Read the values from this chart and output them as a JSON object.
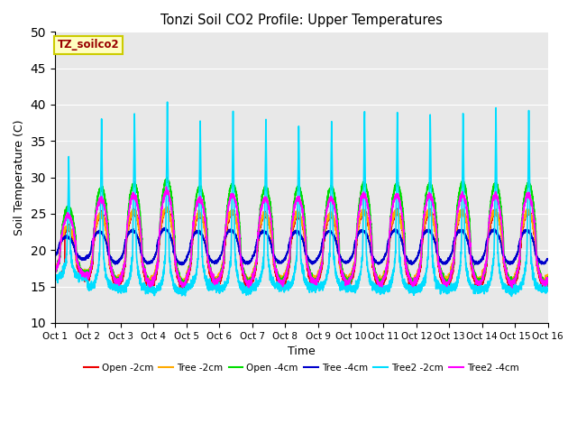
{
  "title": "Tonzi Soil CO2 Profile: Upper Temperatures",
  "xlabel": "Time",
  "ylabel": "Soil Temperature (C)",
  "ylim": [
    10,
    50
  ],
  "xlim": [
    0,
    15
  ],
  "yticks": [
    10,
    15,
    20,
    25,
    30,
    35,
    40,
    45,
    50
  ],
  "xtick_labels": [
    "Oct 1",
    "Oct 2",
    "Oct 3",
    "Oct 4",
    "Oct 5",
    "Oct 6",
    "Oct 7",
    "Oct 8",
    "Oct 9",
    "Oct 10",
    "Oct 11",
    "Oct 12",
    "Oct 13",
    "Oct 14",
    "Oct 15",
    "Oct 16"
  ],
  "label_box_text": "TZ_soilco2",
  "label_box_color": "#ffffc0",
  "label_box_edge": "#cccc00",
  "label_text_color": "#990000",
  "plot_bg_color": "#e8e8e8",
  "lines": {
    "open_2cm": {
      "color": "#ee0000",
      "label": "Open -2cm",
      "lw": 1.2
    },
    "tree_2cm": {
      "color": "#ffaa00",
      "label": "Tree -2cm",
      "lw": 1.2
    },
    "open_4cm": {
      "color": "#00dd00",
      "label": "Open -4cm",
      "lw": 1.2
    },
    "tree_4cm": {
      "color": "#0000cc",
      "label": "Tree -4cm",
      "lw": 1.2
    },
    "tree2_2cm": {
      "color": "#00ddff",
      "label": "Tree2 -2cm",
      "lw": 1.2
    },
    "tree2_4cm": {
      "color": "#ff00ff",
      "label": "Tree2 -4cm",
      "lw": 1.2
    }
  },
  "grid_color": "#ffffff",
  "grid_lw": 0.8,
  "figsize": [
    6.4,
    4.8
  ],
  "dpi": 100
}
